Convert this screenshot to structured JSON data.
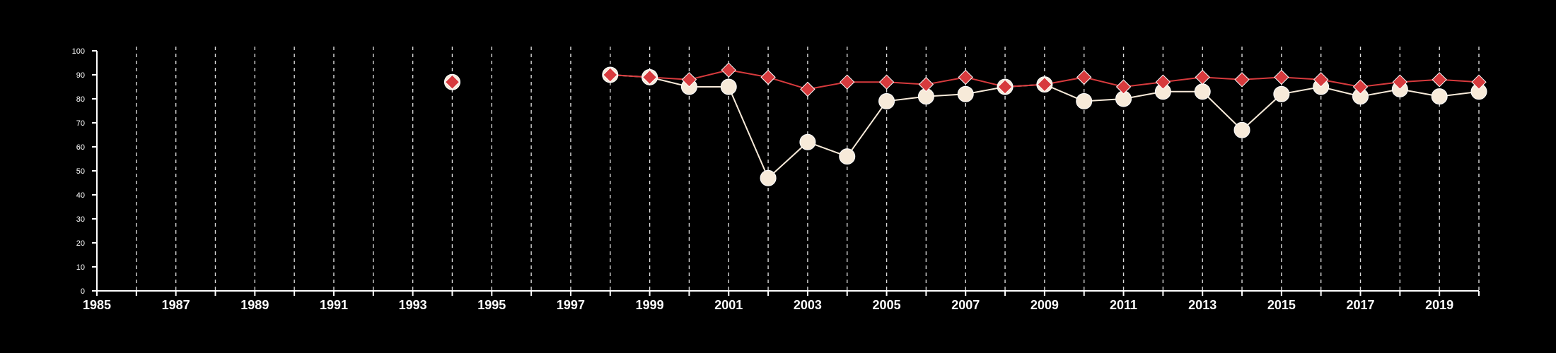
{
  "chart_data": {
    "type": "line",
    "title": "",
    "xlabel": "",
    "ylabel": "",
    "xlim": [
      1985,
      2020
    ],
    "ylim": [
      0,
      100
    ],
    "x_ticks": [
      1985,
      1987,
      1989,
      1991,
      1993,
      1995,
      1997,
      1999,
      2001,
      2003,
      2005,
      2007,
      2009,
      2011,
      2013,
      2015,
      2017,
      2019
    ],
    "y_ticks": [
      0,
      10,
      20,
      30,
      40,
      50,
      60,
      70,
      80,
      90,
      100
    ],
    "vertical_grid": "dashed, every year",
    "legend": "none",
    "series": [
      {
        "marker": "circle",
        "color": "#f7ead9",
        "points": [
          [
            1994,
            87
          ],
          [
            1998,
            90
          ],
          [
            1999,
            89
          ],
          [
            2000,
            85
          ],
          [
            2001,
            85
          ],
          [
            2002,
            47
          ],
          [
            2003,
            62
          ],
          [
            2004,
            56
          ],
          [
            2005,
            79
          ],
          [
            2006,
            81
          ],
          [
            2007,
            82
          ],
          [
            2008,
            85
          ],
          [
            2009,
            86
          ],
          [
            2010,
            79
          ],
          [
            2011,
            80
          ],
          [
            2012,
            83
          ],
          [
            2013,
            83
          ],
          [
            2014,
            67
          ],
          [
            2015,
            82
          ],
          [
            2016,
            85
          ],
          [
            2017,
            81
          ],
          [
            2018,
            84
          ],
          [
            2019,
            81
          ],
          [
            2020,
            83
          ]
        ]
      },
      {
        "marker": "diamond",
        "color": "#d73a3d",
        "points": [
          [
            1994,
            87
          ],
          [
            1998,
            90
          ],
          [
            1999,
            89
          ],
          [
            2000,
            88
          ],
          [
            2001,
            92
          ],
          [
            2002,
            89
          ],
          [
            2003,
            84
          ],
          [
            2004,
            87
          ],
          [
            2005,
            87
          ],
          [
            2006,
            86
          ],
          [
            2007,
            89
          ],
          [
            2008,
            85
          ],
          [
            2009,
            86
          ],
          [
            2010,
            89
          ],
          [
            2011,
            85
          ],
          [
            2012,
            87
          ],
          [
            2013,
            89
          ],
          [
            2014,
            88
          ],
          [
            2015,
            89
          ],
          [
            2016,
            88
          ],
          [
            2017,
            85
          ],
          [
            2018,
            87
          ],
          [
            2019,
            88
          ],
          [
            2020,
            87
          ]
        ]
      }
    ]
  }
}
